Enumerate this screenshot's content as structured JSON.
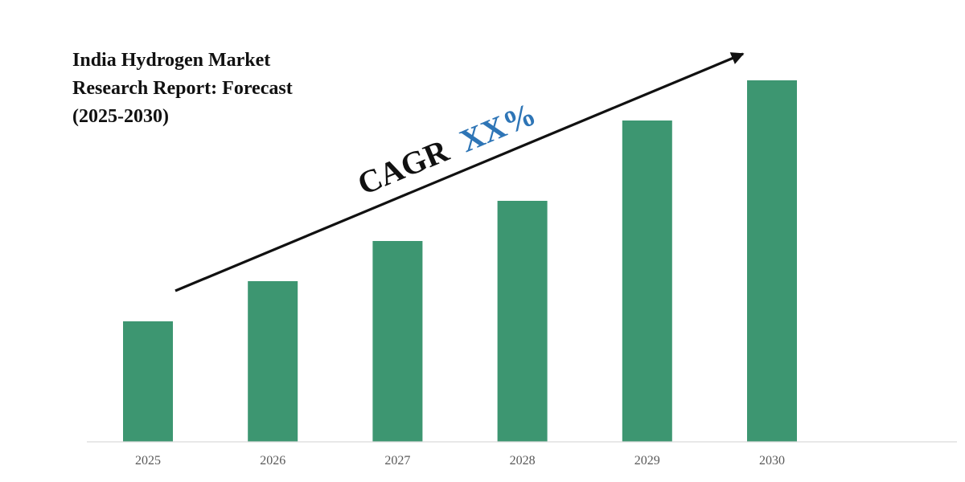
{
  "title_lines": [
    "India Hydrogen Market",
    "Research Report: Forecast",
    "(2025-2030)"
  ],
  "annotation": {
    "prefix": "CAGR",
    "value": "XX%"
  },
  "colors": {
    "bar": "#3d9671",
    "axis": "#d9d9d9",
    "tick_text": "#595959",
    "title_text": "#111111",
    "cagr_prefix": "#111111",
    "cagr_value": "#2e75b6",
    "arrow": "#111111"
  },
  "chart_data": {
    "type": "bar",
    "title": "India Hydrogen Market Research Report: Forecast (2025-2030)",
    "categories": [
      "2025",
      "2026",
      "2027",
      "2028",
      "2029",
      "2030"
    ],
    "values": [
      30,
      40,
      50,
      60,
      80,
      90
    ],
    "ylim": [
      0,
      100
    ],
    "xlabel": "",
    "ylabel": "",
    "grid": false,
    "legend": "none",
    "y_axis_visible": false,
    "annotation": "CAGR XX% upward trend arrow"
  }
}
